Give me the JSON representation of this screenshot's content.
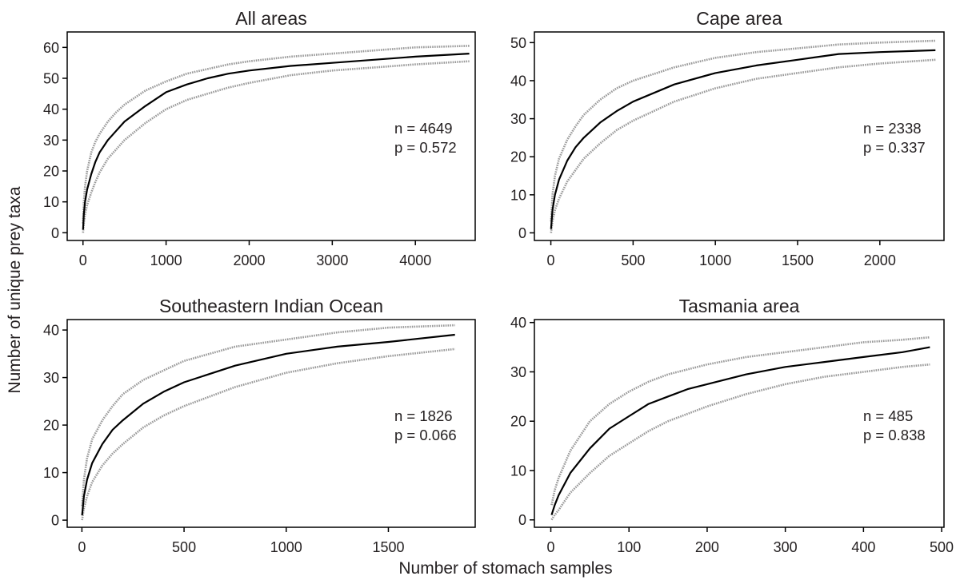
{
  "figure": {
    "ylabel": "Number of unique prey taxa",
    "xlabel": "Number of stomach samples"
  },
  "chart_data": [
    {
      "type": "line",
      "title": "All areas",
      "grid": false,
      "xlim": [
        -190,
        4720
      ],
      "ylim": [
        -2.5,
        65
      ],
      "xticks": [
        0,
        1000,
        2000,
        3000,
        4000
      ],
      "yticks": [
        0,
        10,
        20,
        30,
        40,
        50,
        60
      ],
      "annotations": [
        "n = 4649",
        "p = 0.572"
      ],
      "x": [
        1,
        10,
        25,
        50,
        100,
        150,
        200,
        300,
        400,
        500,
        750,
        1000,
        1250,
        1500,
        1750,
        2000,
        2500,
        3000,
        3500,
        4000,
        4649
      ],
      "series": [
        {
          "color": "#000000",
          "dotted": false,
          "values": [
            1,
            6,
            10,
            14,
            19,
            23,
            26,
            30,
            33,
            36,
            41,
            45.5,
            48,
            50,
            51.5,
            52.5,
            54,
            55,
            56,
            57,
            58
          ]
        },
        {
          "color": "#999999",
          "dotted": true,
          "values": [
            3,
            10,
            15,
            20,
            26,
            29.5,
            32,
            36,
            39,
            41.5,
            46,
            49,
            51.5,
            53,
            54.5,
            55.5,
            57,
            58,
            59,
            60,
            60.5
          ]
        },
        {
          "color": "#999999",
          "dotted": true,
          "values": [
            0,
            3,
            6,
            9,
            13,
            16.5,
            19.5,
            24,
            27,
            30,
            35.5,
            40,
            43,
            45,
            47,
            48.5,
            51,
            52.5,
            53.5,
            54.5,
            55.5
          ]
        }
      ]
    },
    {
      "type": "line",
      "title": "Cape area",
      "grid": false,
      "xlim": [
        -100,
        2390
      ],
      "ylim": [
        -2,
        52.8
      ],
      "xticks": [
        0,
        500,
        1000,
        1500,
        2000
      ],
      "yticks": [
        0,
        10,
        20,
        30,
        40,
        50
      ],
      "annotations": [
        "n = 2338",
        "p = 0.337"
      ],
      "x": [
        1,
        10,
        25,
        50,
        100,
        150,
        200,
        300,
        400,
        500,
        750,
        1000,
        1250,
        1500,
        1750,
        2000,
        2338
      ],
      "series": [
        {
          "color": "#000000",
          "dotted": false,
          "values": [
            1,
            6,
            10,
            14,
            19,
            22.5,
            25,
            29,
            32,
            34.5,
            39,
            42,
            44,
            45.5,
            47,
            47.5,
            48
          ]
        },
        {
          "color": "#999999",
          "dotted": true,
          "values": [
            3,
            10,
            15,
            19.5,
            24.5,
            28,
            31,
            35,
            38,
            40,
            43.5,
            46,
            47.5,
            48.5,
            49.5,
            50,
            50.5
          ]
        },
        {
          "color": "#999999",
          "dotted": true,
          "values": [
            0,
            3,
            6,
            9,
            13.5,
            16.5,
            19.5,
            23.5,
            27,
            29.5,
            34.5,
            38,
            40.5,
            42,
            43.5,
            44.5,
            45.5
          ]
        }
      ]
    },
    {
      "type": "line",
      "title": "Southeastern Indian Ocean",
      "grid": false,
      "xlim": [
        -72,
        1925
      ],
      "ylim": [
        -1.5,
        42.2
      ],
      "xticks": [
        0,
        500,
        1000,
        1500
      ],
      "yticks": [
        0,
        10,
        20,
        30,
        40
      ],
      "annotations": [
        "n = 1826",
        "p = 0.066"
      ],
      "x": [
        1,
        10,
        25,
        50,
        100,
        150,
        200,
        300,
        400,
        500,
        750,
        1000,
        1250,
        1500,
        1826
      ],
      "series": [
        {
          "color": "#000000",
          "dotted": false,
          "values": [
            1,
            5,
            8.5,
            12,
            16,
            19,
            21,
            24.5,
            27,
            29,
            32.5,
            35,
            36.5,
            37.5,
            39
          ]
        },
        {
          "color": "#999999",
          "dotted": true,
          "values": [
            3,
            8.5,
            13,
            17,
            21,
            24,
            26.5,
            29.5,
            31.5,
            33.5,
            36.5,
            38,
            39.5,
            40.5,
            41
          ]
        },
        {
          "color": "#999999",
          "dotted": true,
          "values": [
            0,
            2.5,
            5,
            8,
            11.5,
            14,
            16,
            19.5,
            22,
            24,
            28,
            31,
            33,
            34.5,
            36
          ]
        }
      ]
    },
    {
      "type": "line",
      "title": "Tasmania area",
      "grid": false,
      "xlim": [
        -21,
        503
      ],
      "ylim": [
        -1.5,
        40.6
      ],
      "xticks": [
        0,
        100,
        200,
        300,
        400,
        500
      ],
      "yticks": [
        0,
        10,
        20,
        30,
        40
      ],
      "annotations": [
        "n = 485",
        "p = 0.838"
      ],
      "x": [
        1,
        5,
        10,
        25,
        50,
        75,
        100,
        125,
        150,
        175,
        200,
        250,
        300,
        350,
        400,
        450,
        485
      ],
      "series": [
        {
          "color": "#000000",
          "dotted": false,
          "values": [
            1,
            3,
            5,
            9.5,
            14.5,
            18.5,
            21,
            23.5,
            25,
            26.5,
            27.5,
            29.5,
            31,
            32,
            33,
            34,
            35
          ]
        },
        {
          "color": "#999999",
          "dotted": true,
          "values": [
            3,
            6,
            8.5,
            14,
            20,
            23.5,
            26,
            28,
            29.5,
            30.5,
            31.5,
            33,
            34,
            35,
            36,
            36.5,
            37
          ]
        },
        {
          "color": "#999999",
          "dotted": true,
          "values": [
            0,
            1,
            2,
            5.5,
            9.5,
            13,
            15.5,
            18,
            20,
            21.5,
            23,
            25.5,
            27.5,
            29,
            30,
            31,
            31.5
          ]
        }
      ]
    }
  ]
}
